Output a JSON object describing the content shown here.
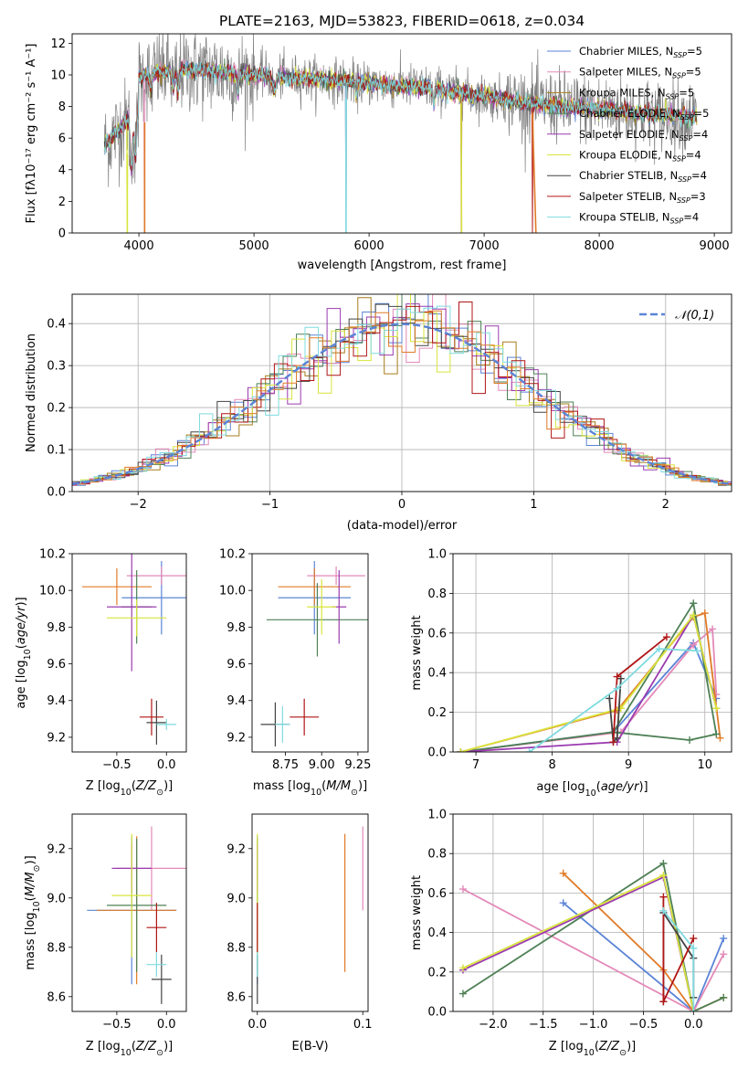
{
  "chart_data": [
    {
      "type": "line",
      "title": "PLATE=2163, MJD=53823, FIBERID=0618, z=0.034",
      "xlabel": "wavelength [Angstrom, rest frame]",
      "ylabel": "Flux [f$_\\lambda$10$^{-17}$ erg cm$^{-2}$ s$^{-1}$ A$^{-1}$]",
      "ylabel_display": "Flux [fλ10⁻¹⁷ erg cm⁻² s⁻¹ A⁻¹]",
      "xlim": [
        3420,
        9150
      ],
      "ylim": [
        0,
        12.6
      ],
      "xticks": [
        "4000",
        "5000",
        "6000",
        "7000",
        "8000",
        "9000"
      ],
      "yticks": [
        "0",
        "2",
        "4",
        "6",
        "8",
        "10",
        "12"
      ],
      "legend_position": "top-right",
      "series": [
        {
          "name": "Chabrier MILES, N_SSP=5",
          "label": "Chabrier MILES, N",
          "sub": "SSP",
          "suffix": "=5",
          "color": "#5b84d6"
        },
        {
          "name": "Salpeter MILES, N_SSP=5",
          "label": "Salpeter MILES, N",
          "sub": "SSP",
          "suffix": "=5",
          "color": "#e389b9"
        },
        {
          "name": "Kroupa MILES, N_SSP=5",
          "label": "Kroupa MILES, N",
          "sub": "SSP",
          "suffix": "=5",
          "color": "#a67c1a"
        },
        {
          "name": "Chabrier ELODIE, N_SSP=5",
          "label": "Chabrier ELODIE, N",
          "sub": "SSP",
          "suffix": "=5",
          "color": "#4e8055"
        },
        {
          "name": "Salpeter ELODIE, N_SSP=4",
          "label": "Salpeter ELODIE, N",
          "sub": "SSP",
          "suffix": "=4",
          "color": "#9b3bb0"
        },
        {
          "name": "Kroupa ELODIE, N_SSP=4",
          "label": "Kroupa ELODIE, N",
          "sub": "SSP",
          "suffix": "=4",
          "color": "#d8e43c"
        },
        {
          "name": "Chabrier STELIB, N_SSP=4",
          "label": "Chabrier STELIB, N",
          "sub": "SSP",
          "suffix": "=4",
          "color": "#444444"
        },
        {
          "name": "Salpeter STELIB, N_SSP=3",
          "label": "Salpeter STELIB, N",
          "sub": "SSP",
          "suffix": "=3",
          "color": "#b01515"
        },
        {
          "name": "Kroupa STELIB, N_SSP=4",
          "label": "Kroupa STELIB, N",
          "sub": "SSP",
          "suffix": "=4",
          "color": "#7fdbe0"
        }
      ],
      "data_color": "#808080",
      "model_color": "#e07b28"
    },
    {
      "type": "line",
      "xlabel": "(data-model)/error",
      "ylabel": "Normed distribution",
      "xlim": [
        -2.5,
        2.5
      ],
      "ylim": [
        0,
        0.47
      ],
      "xticks": [
        "−2",
        "−1",
        "0",
        "1",
        "2"
      ],
      "yticks": [
        "0.0",
        "0.1",
        "0.2",
        "0.3",
        "0.4"
      ],
      "grid": true,
      "legend_position": "top-right",
      "reference_curve": {
        "name": "𝒩(0,1)",
        "mean": 0,
        "sigma": 1,
        "color": "#5b84d6"
      }
    },
    {
      "type": "scatter",
      "xlabel": "Z [log10(Z/Z⊙)]",
      "ylabel": "age  [log10(age/yr)]",
      "xlim": [
        -0.95,
        0.2
      ],
      "ylim": [
        9.12,
        10.2
      ],
      "xticks": [
        "−0.5",
        "0.0"
      ],
      "yticks": [
        "9.2",
        "9.4",
        "9.6",
        "9.8",
        "10.0",
        "10.2"
      ],
      "points": [
        {
          "x": -0.05,
          "y": 9.96,
          "xerr": 0.4,
          "yerr": 0.2,
          "color": "#5b84d6"
        },
        {
          "x": -0.05,
          "y": 10.08,
          "xerr": 0.35,
          "yerr": 0.05,
          "color": "#e389b9"
        },
        {
          "x": -0.5,
          "y": 10.02,
          "xerr": 0.35,
          "yerr": 0.1,
          "color": "#e07b28"
        },
        {
          "x": -0.3,
          "y": 9.91,
          "xerr": 0.15,
          "yerr": 0.2,
          "color": "#4e8055"
        },
        {
          "x": -0.35,
          "y": 9.91,
          "xerr": 0.25,
          "yerr": 0.35,
          "color": "#9b3bb0"
        },
        {
          "x": -0.3,
          "y": 9.85,
          "xerr": 0.3,
          "yerr": 0.1,
          "color": "#d8e43c"
        },
        {
          "x": -0.1,
          "y": 9.28,
          "xerr": 0.1,
          "yerr": 0.12,
          "color": "#444444"
        },
        {
          "x": -0.15,
          "y": 9.31,
          "xerr": 0.12,
          "yerr": 0.1,
          "color": "#b01515"
        },
        {
          "x": 0.0,
          "y": 9.27,
          "xerr": 0.1,
          "yerr": 0.03,
          "color": "#7fdbe0"
        }
      ]
    },
    {
      "type": "scatter",
      "xlabel": "mass [log10(M/M⊙)]",
      "ylabel": "",
      "xlim": [
        8.52,
        9.32
      ],
      "ylim": [
        9.12,
        10.2
      ],
      "xticks": [
        "8.75",
        "9.00",
        "9.25"
      ],
      "yticks": [
        "9.2",
        "9.4",
        "9.6",
        "9.8",
        "10.0",
        "10.2"
      ],
      "points": [
        {
          "x": 8.95,
          "y": 9.96,
          "xerr": 0.25,
          "yerr": 0.2,
          "color": "#5b84d6"
        },
        {
          "x": 9.1,
          "y": 10.08,
          "xerr": 0.2,
          "yerr": 0.05,
          "color": "#e389b9"
        },
        {
          "x": 8.95,
          "y": 10.02,
          "xerr": 0.25,
          "yerr": 0.1,
          "color": "#e07b28"
        },
        {
          "x": 8.97,
          "y": 9.84,
          "xerr": 0.35,
          "yerr": 0.2,
          "color": "#4e8055"
        },
        {
          "x": 9.12,
          "y": 9.91,
          "xerr": 0.05,
          "yerr": 0.2,
          "color": "#9b3bb0"
        },
        {
          "x": 9.0,
          "y": 9.91,
          "xerr": 0.1,
          "yerr": 0.15,
          "color": "#d8e43c"
        },
        {
          "x": 8.68,
          "y": 9.27,
          "xerr": 0.1,
          "yerr": 0.12,
          "color": "#444444"
        },
        {
          "x": 8.88,
          "y": 9.31,
          "xerr": 0.1,
          "yerr": 0.1,
          "color": "#b01515"
        },
        {
          "x": 8.73,
          "y": 9.27,
          "xerr": 0.05,
          "yerr": 0.1,
          "color": "#7fdbe0"
        }
      ]
    },
    {
      "type": "line",
      "xlabel": "age  [log10(age/yr)]",
      "ylabel": "mass weight",
      "xlim": [
        6.7,
        10.35
      ],
      "ylim": [
        0,
        1.0
      ],
      "xticks": [
        "7",
        "8",
        "9",
        "10"
      ],
      "yticks": [
        "0.0",
        "0.2",
        "0.4",
        "0.6",
        "0.8",
        "1.0"
      ],
      "grid": true,
      "series": [
        {
          "name": "Chabrier MILES",
          "x": [
            6.8,
            8.8,
            9.85,
            10.15
          ],
          "y": [
            0.0,
            0.1,
            0.55,
            0.27
          ],
          "color": "#5b84d6"
        },
        {
          "name": "Salpeter MILES",
          "x": [
            6.8,
            8.9,
            9.85,
            10.1,
            10.15
          ],
          "y": [
            0.0,
            0.1,
            0.54,
            0.62,
            0.29
          ],
          "color": "#e389b9"
        },
        {
          "name": "Kroupa MILES",
          "x": [
            6.8,
            8.85,
            9.85,
            10.0,
            10.2
          ],
          "y": [
            0.0,
            0.21,
            0.68,
            0.7,
            0.07
          ],
          "color": "#e07b28"
        },
        {
          "name": "Chabrier ELODIE",
          "x": [
            6.8,
            8.8,
            9.85,
            10.15,
            9.8,
            8.8
          ],
          "y": [
            0.0,
            0.1,
            0.75,
            0.09,
            0.06,
            0.1
          ],
          "color": "#4e8055"
        },
        {
          "name": "Salpeter ELODIE",
          "x": [
            6.8,
            8.85,
            9.85,
            10.15
          ],
          "y": [
            0.0,
            0.05,
            0.69,
            0.22
          ],
          "color": "#9b3bb0"
        },
        {
          "name": "Kroupa ELODIE",
          "x": [
            6.8,
            8.9,
            9.85,
            10.15
          ],
          "y": [
            0.0,
            0.22,
            0.69,
            0.22
          ],
          "color": "#d8e43c"
        },
        {
          "name": "Chabrier STELIB",
          "x": [
            8.75,
            8.8,
            8.85,
            8.9
          ],
          "y": [
            0.27,
            0.05,
            0.07,
            0.37
          ],
          "color": "#444444"
        },
        {
          "name": "Salpeter STELIB",
          "x": [
            8.8,
            8.85,
            9.5
          ],
          "y": [
            0.05,
            0.38,
            0.58
          ],
          "color": "#b01515"
        },
        {
          "name": "Kroupa STELIB",
          "x": [
            7.7,
            8.85,
            9.4,
            9.9
          ],
          "y": [
            0.0,
            0.32,
            0.52,
            0.51
          ],
          "color": "#7fdbe0"
        }
      ]
    },
    {
      "type": "scatter",
      "xlabel": "Z [log10(Z/Z⊙)]",
      "ylabel": "mass [log10(M/M⊙)]",
      "xlim": [
        -0.95,
        0.2
      ],
      "ylim": [
        8.54,
        9.34
      ],
      "xticks": [
        "−0.5",
        "0.0"
      ],
      "yticks": [
        "8.6",
        "8.8",
        "9.0",
        "9.2"
      ],
      "points": [
        {
          "x": -0.35,
          "y": 8.95,
          "xerr": 0.45,
          "yerr": 0.3,
          "color": "#5b84d6"
        },
        {
          "x": -0.15,
          "y": 9.12,
          "xerr": 0.35,
          "yerr": 0.17,
          "color": "#e389b9"
        },
        {
          "x": -0.3,
          "y": 8.95,
          "xerr": 0.4,
          "yerr": 0.3,
          "color": "#e07b28"
        },
        {
          "x": -0.3,
          "y": 8.97,
          "xerr": 0.3,
          "yerr": 0.27,
          "color": "#4e8055"
        },
        {
          "x": -0.35,
          "y": 9.12,
          "xerr": 0.2,
          "yerr": 0.1,
          "color": "#9b3bb0"
        },
        {
          "x": -0.35,
          "y": 9.01,
          "xerr": 0.2,
          "yerr": 0.25,
          "color": "#d8e43c"
        },
        {
          "x": -0.05,
          "y": 8.67,
          "xerr": 0.1,
          "yerr": 0.1,
          "color": "#444444"
        },
        {
          "x": -0.1,
          "y": 8.88,
          "xerr": 0.1,
          "yerr": 0.1,
          "color": "#b01515"
        },
        {
          "x": -0.1,
          "y": 8.73,
          "xerr": 0.1,
          "yerr": 0.05,
          "color": "#7fdbe0"
        }
      ]
    },
    {
      "type": "scatter",
      "xlabel": "E(B-V)",
      "ylabel": "",
      "xlim": [
        -0.005,
        0.105
      ],
      "ylim": [
        8.54,
        9.34
      ],
      "xticks": [
        "0.0",
        "0.1"
      ],
      "yticks": [
        "8.6",
        "8.8",
        "9.0",
        "9.2"
      ],
      "points": [
        {
          "x": 0.0,
          "y": 8.95,
          "yerr": 0.3,
          "color": "#5b84d6"
        },
        {
          "x": 0.1,
          "y": 9.12,
          "yerr": 0.17,
          "color": "#e389b9"
        },
        {
          "x": 0.083,
          "y": 8.98,
          "yerr": 0.28,
          "color": "#e07b28"
        },
        {
          "x": 0.0,
          "y": 8.97,
          "yerr": 0.27,
          "color": "#4e8055"
        },
        {
          "x": 0.0,
          "y": 9.12,
          "yerr": 0.1,
          "color": "#9b3bb0"
        },
        {
          "x": 0.0,
          "y": 9.01,
          "yerr": 0.25,
          "color": "#d8e43c"
        },
        {
          "x": 0.0,
          "y": 8.67,
          "yerr": 0.1,
          "color": "#444444"
        },
        {
          "x": 0.0,
          "y": 8.88,
          "yerr": 0.1,
          "color": "#b01515"
        },
        {
          "x": 0.0,
          "y": 8.73,
          "yerr": 0.05,
          "color": "#7fdbe0"
        }
      ]
    },
    {
      "type": "line",
      "xlabel": "Z [log10(Z/Z⊙)]",
      "ylabel": "mass weight",
      "xlim": [
        -2.4,
        0.38
      ],
      "ylim": [
        0,
        1.0
      ],
      "xticks": [
        "−2.0",
        "−1.5",
        "−1.0",
        "−0.5",
        "0.0"
      ],
      "yticks": [
        "0.0",
        "0.2",
        "0.4",
        "0.6",
        "0.8",
        "1.0"
      ],
      "grid": true,
      "series": [
        {
          "name": "Chabrier MILES",
          "x": [
            -1.3,
            0.0,
            0.3
          ],
          "y": [
            0.55,
            0.0,
            0.37
          ],
          "color": "#5b84d6"
        },
        {
          "name": "Salpeter MILES",
          "x": [
            -2.3,
            0.0,
            0.3
          ],
          "y": [
            0.62,
            0.0,
            0.29
          ],
          "color": "#e389b9"
        },
        {
          "name": "Kroupa MILES",
          "x": [
            -1.3,
            -0.3,
            0.0,
            0.3
          ],
          "y": [
            0.7,
            0.21,
            0.0,
            0.07
          ],
          "color": "#e07b28"
        },
        {
          "name": "Chabrier ELODIE",
          "x": [
            -2.3,
            -0.3,
            0.0,
            0.3
          ],
          "y": [
            0.09,
            0.75,
            0.0,
            0.07
          ],
          "color": "#4e8055"
        },
        {
          "name": "Salpeter ELODIE",
          "x": [
            -2.3,
            -0.3,
            0.0
          ],
          "y": [
            0.21,
            0.68,
            0.0
          ],
          "color": "#9b3bb0"
        },
        {
          "name": "Kroupa ELODIE",
          "x": [
            -2.3,
            -0.3,
            0.0
          ],
          "y": [
            0.22,
            0.69,
            0.0
          ],
          "color": "#d8e43c"
        },
        {
          "name": "Chabrier STELIB",
          "x": [
            -0.3,
            -0.3,
            0.0,
            0.0
          ],
          "y": [
            0.05,
            0.5,
            0.27,
            0.07
          ],
          "color": "#444444"
        },
        {
          "name": "Salpeter STELIB",
          "x": [
            -0.3,
            -0.3,
            0.0
          ],
          "y": [
            0.58,
            0.05,
            0.37
          ],
          "color": "#b01515"
        },
        {
          "name": "Kroupa STELIB",
          "x": [
            -0.3,
            0.0,
            0.0
          ],
          "y": [
            0.51,
            0.32,
            0.0
          ],
          "color": "#7fdbe0"
        }
      ]
    }
  ]
}
